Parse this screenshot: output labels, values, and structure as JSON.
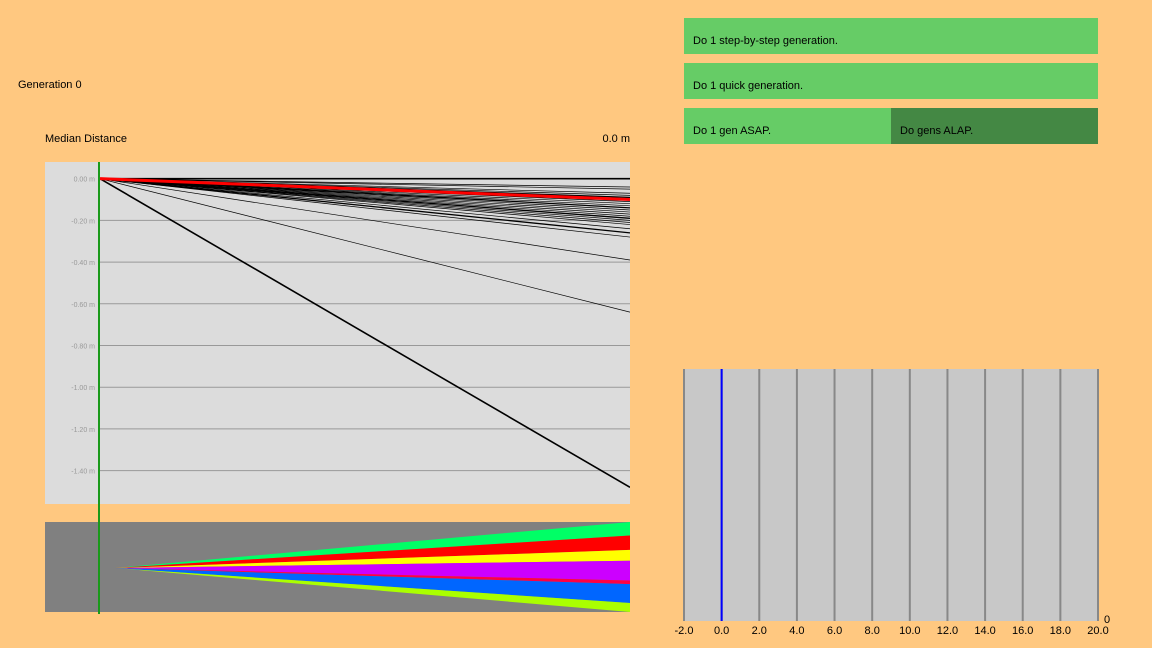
{
  "generation_label": "Generation 0",
  "median_distance": {
    "label": "Median Distance",
    "value": "0.0 m"
  },
  "buttons": {
    "step_by_step": "Do 1 step-by-step generation.",
    "quick": "Do 1 quick generation.",
    "asap": "Do 1 gen ASAP.",
    "alap": "Do gens ALAP."
  },
  "colors": {
    "background": "#FFC880",
    "button": "#66CC66",
    "button_active": "#448844",
    "graph_bg": "#DCDCDC",
    "species_bg": "#808080",
    "histogram_bg": "#C8C8C8",
    "generation_marker": "#1A9A1A",
    "median_line": "#FF0000",
    "histogram_marker": "#0000FF"
  },
  "chart_data": [
    {
      "type": "line",
      "name": "percentile-graph",
      "title": "",
      "xlabel": "",
      "ylabel": "",
      "y_tick_labels": [
        "0.00 m",
        "-0.20 m",
        "-0.40 m",
        "-0.60 m",
        "-0.80 m",
        "-1.00 m",
        "-1.20 m",
        "-1.40 m"
      ],
      "y_ticks": [
        0.0,
        -0.2,
        -0.4,
        -0.6,
        -0.8,
        -1.0,
        -1.2,
        -1.4
      ],
      "ylim": [
        -1.56,
        0.08
      ],
      "x": [
        0,
        1
      ],
      "percentile_end_values": [
        0.0,
        -0.04,
        -0.05,
        -0.07,
        -0.08,
        -0.09,
        -0.1,
        -0.11,
        -0.12,
        -0.13,
        -0.14,
        -0.15,
        -0.16,
        -0.17,
        -0.18,
        -0.19,
        -0.2,
        -0.21,
        -0.22,
        -0.24,
        -0.26,
        -0.28,
        -0.39,
        -0.64,
        -1.48
      ],
      "median_end_value": -0.1
    },
    {
      "type": "area",
      "name": "species-graph",
      "x": [
        0,
        1
      ],
      "band_colors": [
        "#00FF66",
        "#FF0000",
        "#FFFF00",
        "#CC00FF",
        "#FF0044",
        "#0066FF",
        "#AAFF00"
      ],
      "band_start_fractions": [
        0.14,
        0.14,
        0.14,
        0.14,
        0.14,
        0.14,
        0.14
      ],
      "band_end_fractions": [
        0.15,
        0.16,
        0.12,
        0.22,
        0.04,
        0.21,
        0.1
      ]
    },
    {
      "type": "bar",
      "name": "histogram",
      "x_ticks": [
        "-2.0",
        "0.0",
        "2.0",
        "4.0",
        "6.0",
        "8.0",
        "10.0",
        "12.0",
        "14.0",
        "16.0",
        "18.0",
        "20.0"
      ],
      "xlim": [
        -2.0,
        20.0
      ],
      "y_tick_label": "0",
      "marker_value": 0.0,
      "values": []
    }
  ]
}
